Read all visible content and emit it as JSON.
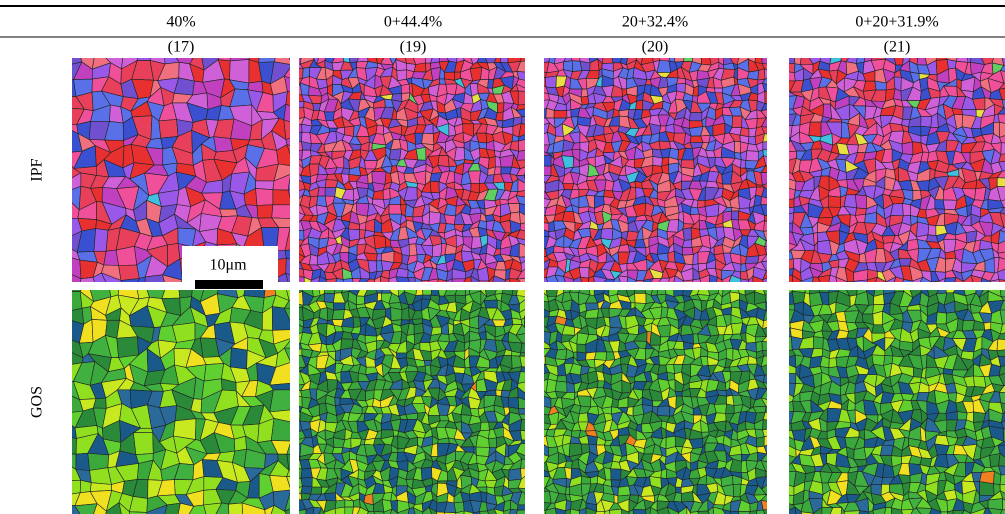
{
  "columns": [
    {
      "label": "40%",
      "sample": "(17)"
    },
    {
      "label": "0+44.4%",
      "sample": "(19)"
    },
    {
      "label": "20+32.4%",
      "sample": "(20)"
    },
    {
      "label": "0+20+31.9%",
      "sample": "(21)"
    }
  ],
  "rows": [
    {
      "label": "IPF"
    },
    {
      "label": "GOS"
    }
  ],
  "scale_bar": "10μm"
}
